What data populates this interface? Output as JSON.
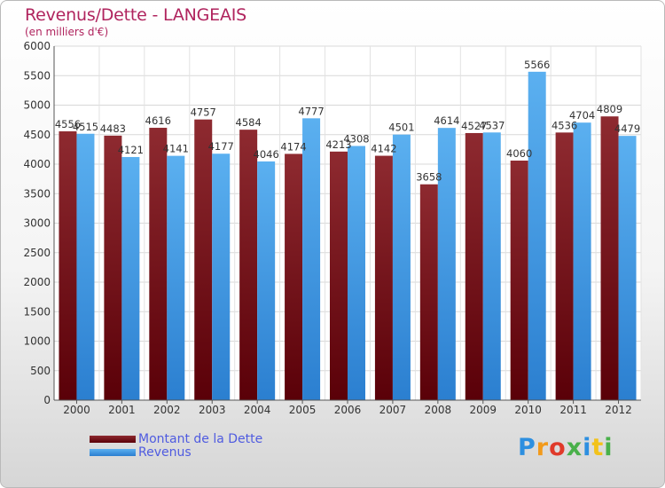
{
  "title": "Revenus/Dette - LANGEAIS",
  "subtitle": "(en milliers d'€)",
  "colors": {
    "title": "#b0245e",
    "dette": "#7a1420",
    "revenus": "#3f9be3",
    "legend_text": "#4f5be0"
  },
  "legend": [
    {
      "label": "Montant de la Dette",
      "color": "#7a1420"
    },
    {
      "label": "Revenus",
      "color": "#3f9be3"
    }
  ],
  "logo": {
    "text": "Proxiti"
  },
  "chart_data": {
    "type": "bar",
    "categories": [
      "2000",
      "2001",
      "2002",
      "2003",
      "2004",
      "2005",
      "2006",
      "2007",
      "2008",
      "2009",
      "2010",
      "2011",
      "2012"
    ],
    "series": [
      {
        "name": "Montant de la Dette",
        "values": [
          4556,
          4483,
          4616,
          4757,
          4584,
          4174,
          4213,
          4142,
          3658,
          4527,
          4060,
          4536,
          4809
        ]
      },
      {
        "name": "Revenus",
        "values": [
          4515,
          4121,
          4141,
          4177,
          4046,
          4777,
          4308,
          4501,
          4614,
          4537,
          5566,
          4704,
          4479
        ]
      }
    ],
    "ylim": [
      0,
      6000
    ],
    "yticks": [
      0,
      500,
      1000,
      1500,
      2000,
      2500,
      3000,
      3500,
      4000,
      4500,
      5000,
      5500,
      6000
    ],
    "grid": true,
    "legend_position": "bottom-left"
  }
}
